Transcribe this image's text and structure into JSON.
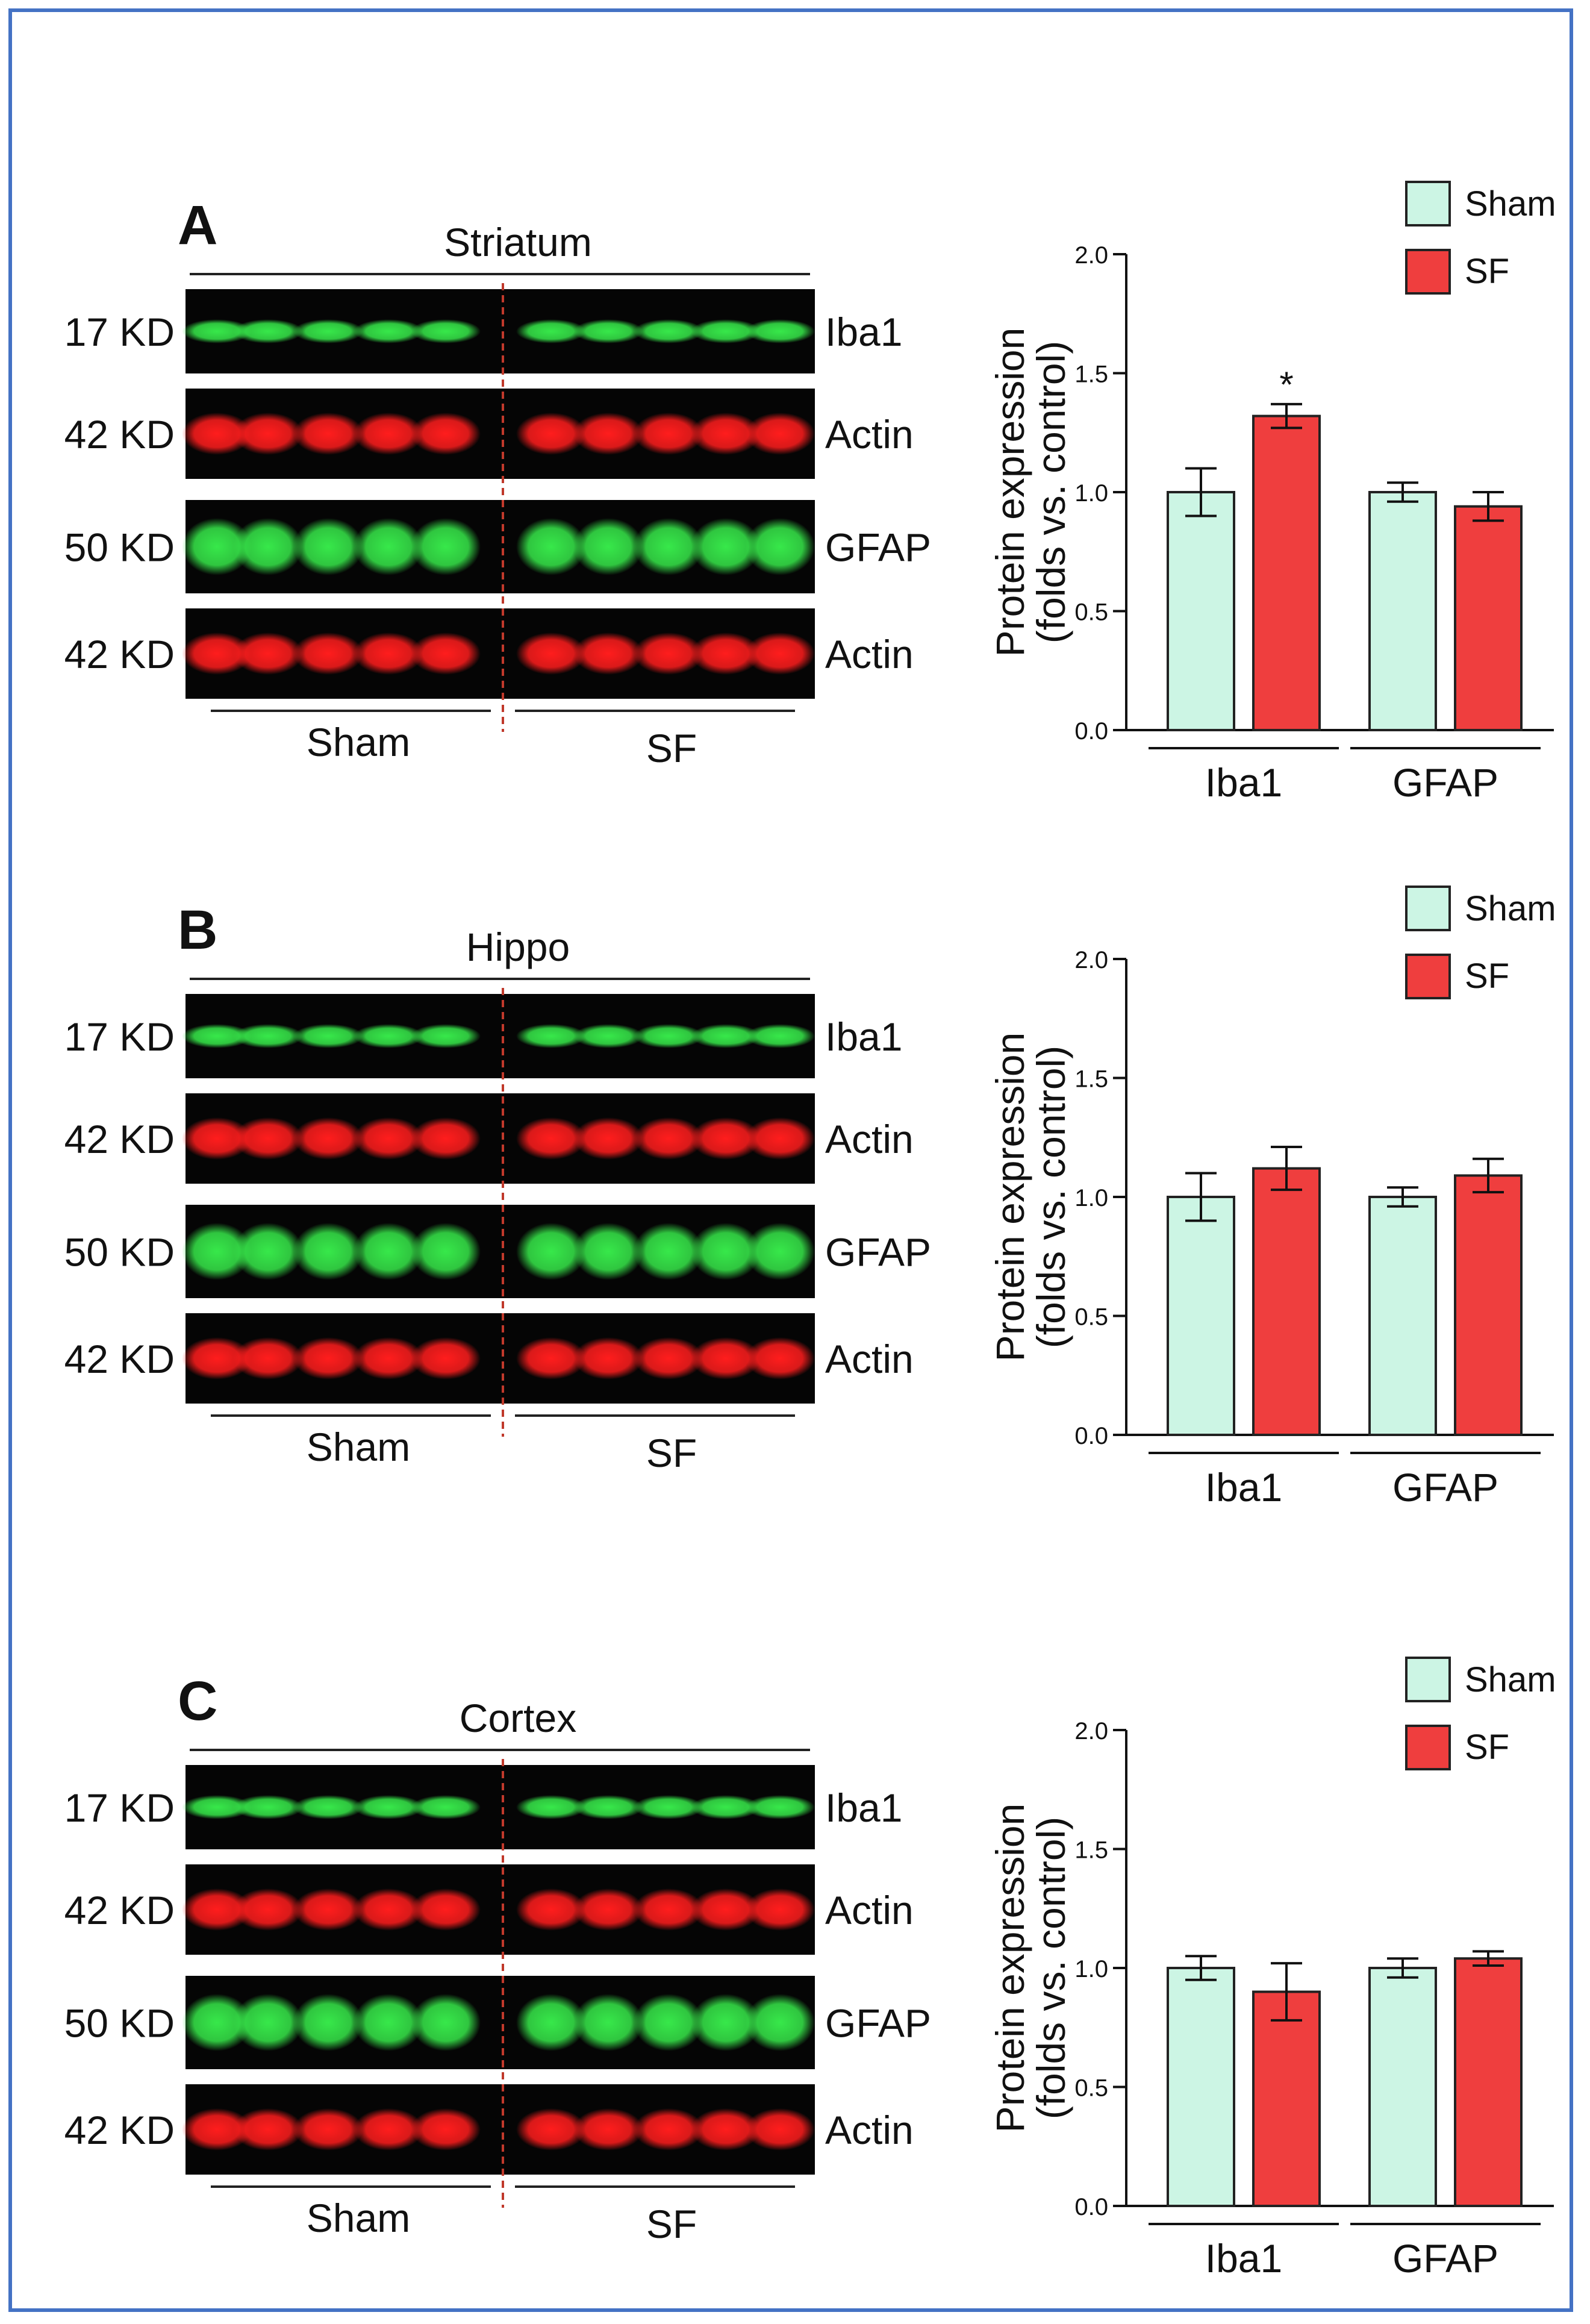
{
  "colors": {
    "border": "#4472c4",
    "sham": "#ccf5e4",
    "sf": "#ef3e3e",
    "green_band": "#37e84a",
    "red_band": "#ff1d1d",
    "divider": "#c0392b"
  },
  "legend": {
    "sham": "Sham",
    "sf": "SF"
  },
  "groups": {
    "sham": "Sham",
    "sf": "SF"
  },
  "panels": [
    {
      "letter": "A",
      "region": "Striatum",
      "blots": [
        {
          "kd": "17 KD",
          "protein": "Iba1",
          "color": "green"
        },
        {
          "kd": "42 KD",
          "protein": "Actin",
          "color": "red"
        },
        {
          "kd": "50 KD",
          "protein": "GFAP",
          "color": "green"
        },
        {
          "kd": "42 KD",
          "protein": "Actin",
          "color": "red"
        }
      ],
      "significance": "*"
    },
    {
      "letter": "B",
      "region": "Hippo",
      "blots": [
        {
          "kd": "17 KD",
          "protein": "Iba1",
          "color": "green"
        },
        {
          "kd": "42 KD",
          "protein": "Actin",
          "color": "red"
        },
        {
          "kd": "50 KD",
          "protein": "GFAP",
          "color": "green"
        },
        {
          "kd": "42 KD",
          "protein": "Actin",
          "color": "red"
        }
      ],
      "significance": ""
    },
    {
      "letter": "C",
      "region": "Cortex",
      "blots": [
        {
          "kd": "17 KD",
          "protein": "Iba1",
          "color": "green"
        },
        {
          "kd": "42 KD",
          "protein": "Actin",
          "color": "red"
        },
        {
          "kd": "50 KD",
          "protein": "GFAP",
          "color": "green"
        },
        {
          "kd": "42 KD",
          "protein": "Actin",
          "color": "red"
        }
      ],
      "significance": ""
    }
  ],
  "chart_data": [
    {
      "type": "bar",
      "title": "Striatum",
      "ylabel_line1": "Protein expression",
      "ylabel_line2": "(folds vs. control)",
      "categories": [
        "Iba1",
        "GFAP"
      ],
      "ylim": [
        0,
        2.0
      ],
      "yticks": [
        "0.0",
        "0.5",
        "1.0",
        "1.5",
        "2.0"
      ],
      "series": [
        {
          "name": "Sham",
          "values": [
            1.0,
            1.0
          ],
          "errors": [
            0.1,
            0.04
          ]
        },
        {
          "name": "SF",
          "values": [
            1.32,
            0.94
          ],
          "errors": [
            0.05,
            0.06
          ]
        }
      ],
      "annotation": "*"
    },
    {
      "type": "bar",
      "title": "Hippo",
      "ylabel_line1": "Protein expression",
      "ylabel_line2": "(folds vs. control)",
      "categories": [
        "Iba1",
        "GFAP"
      ],
      "ylim": [
        0,
        2.0
      ],
      "yticks": [
        "0.0",
        "0.5",
        "1.0",
        "1.5",
        "2.0"
      ],
      "series": [
        {
          "name": "Sham",
          "values": [
            1.0,
            1.0
          ],
          "errors": [
            0.1,
            0.04
          ]
        },
        {
          "name": "SF",
          "values": [
            1.12,
            1.09
          ],
          "errors": [
            0.09,
            0.07
          ]
        }
      ],
      "annotation": ""
    },
    {
      "type": "bar",
      "title": "Cortex",
      "ylabel_line1": "Protein expression",
      "ylabel_line2": "(folds vs. control)",
      "categories": [
        "Iba1",
        "GFAP"
      ],
      "ylim": [
        0,
        2.0
      ],
      "yticks": [
        "0.0",
        "0.5",
        "1.0",
        "1.5",
        "2.0"
      ],
      "series": [
        {
          "name": "Sham",
          "values": [
            1.0,
            1.0
          ],
          "errors": [
            0.05,
            0.04
          ]
        },
        {
          "name": "SF",
          "values": [
            0.9,
            1.04
          ],
          "errors": [
            0.12,
            0.03
          ]
        }
      ],
      "annotation": ""
    }
  ]
}
